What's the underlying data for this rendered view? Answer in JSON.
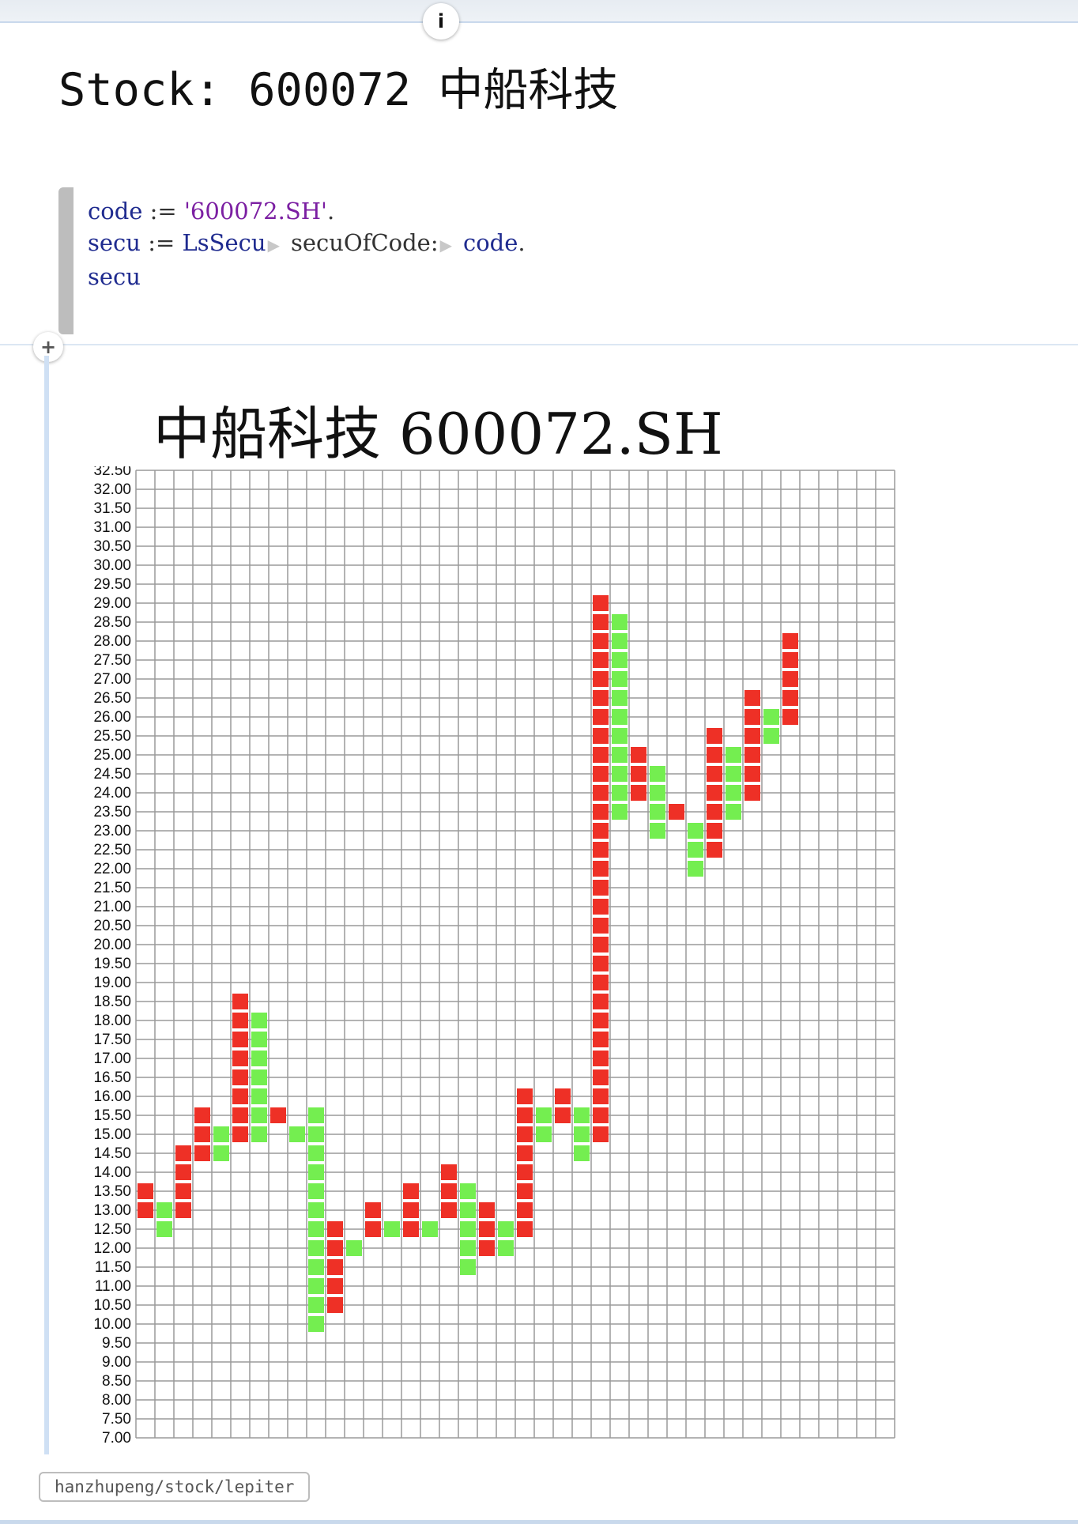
{
  "page_title": "Stock: 600072 中船科技",
  "code": {
    "line1": {
      "var": "code",
      "op": ":=",
      "str": "'600072.SH'",
      "end": "."
    },
    "line2": {
      "var": "secu",
      "op": ":=",
      "cls": "LsSecu",
      "msg": "secuOfCode:",
      "arg": "code",
      "end": "."
    },
    "line3": {
      "var": "secu"
    }
  },
  "repo_label": "hanzhupeng/stock/lepiter",
  "chart_data": {
    "type": "heatmap",
    "title": "中船科技 600072.SH",
    "y_min": 7.0,
    "y_max": 32.5,
    "y_step": 0.5,
    "y_ticks": [
      "32.50",
      "32.00",
      "31.50",
      "31.00",
      "30.50",
      "30.00",
      "29.50",
      "29.00",
      "28.50",
      "28.00",
      "27.50",
      "27.00",
      "26.50",
      "26.00",
      "25.50",
      "25.00",
      "24.50",
      "24.00",
      "23.50",
      "23.00",
      "22.50",
      "22.00",
      "21.50",
      "21.00",
      "20.50",
      "20.00",
      "19.50",
      "19.00",
      "18.50",
      "18.00",
      "17.50",
      "17.00",
      "16.50",
      "16.00",
      "15.50",
      "15.00",
      "14.50",
      "14.00",
      "13.50",
      "13.00",
      "12.50",
      "12.00",
      "11.50",
      "11.00",
      "10.50",
      "10.00",
      "9.50",
      "9.00",
      "8.50",
      "8.00",
      "7.50",
      "7.00"
    ],
    "num_columns": 40,
    "colors": {
      "up": "#ee3026",
      "down": "#74ee50",
      "grid": "#9a9a9a"
    },
    "columns": [
      {
        "dir": "up",
        "from": 13.0,
        "to": 13.5
      },
      {
        "dir": "down",
        "from": 13.0,
        "to": 12.5
      },
      {
        "dir": "up",
        "from": 13.0,
        "to": 14.5
      },
      {
        "dir": "up",
        "from": 14.5,
        "to": 15.5
      },
      {
        "dir": "down",
        "from": 15.0,
        "to": 14.5
      },
      {
        "dir": "up",
        "from": 15.0,
        "to": 18.5
      },
      {
        "dir": "down",
        "from": 18.0,
        "to": 15.0
      },
      {
        "dir": "up",
        "from": 15.5,
        "to": 15.5
      },
      {
        "dir": "down",
        "from": 15.0,
        "to": 15.0
      },
      {
        "dir": "down",
        "from": 15.5,
        "to": 10.0
      },
      {
        "dir": "up",
        "from": 10.5,
        "to": 12.5
      },
      {
        "dir": "down",
        "from": 12.0,
        "to": 12.0
      },
      {
        "dir": "up",
        "from": 12.5,
        "to": 13.0
      },
      {
        "dir": "down",
        "from": 12.5,
        "to": 12.5
      },
      {
        "dir": "up",
        "from": 12.5,
        "to": 13.5
      },
      {
        "dir": "down",
        "from": 12.5,
        "to": 12.5
      },
      {
        "dir": "up",
        "from": 13.0,
        "to": 14.0
      },
      {
        "dir": "down",
        "from": 13.5,
        "to": 11.5
      },
      {
        "dir": "up",
        "from": 12.0,
        "to": 13.0
      },
      {
        "dir": "down",
        "from": 12.5,
        "to": 12.0
      },
      {
        "dir": "up",
        "from": 12.5,
        "to": 16.0
      },
      {
        "dir": "down",
        "from": 15.5,
        "to": 15.0
      },
      {
        "dir": "up",
        "from": 15.5,
        "to": 16.0
      },
      {
        "dir": "down",
        "from": 15.5,
        "to": 14.5
      },
      {
        "dir": "up",
        "from": 15.0,
        "to": 29.0
      },
      {
        "dir": "down",
        "from": 28.5,
        "to": 23.5
      },
      {
        "dir": "up",
        "from": 24.0,
        "to": 25.0
      },
      {
        "dir": "down",
        "from": 24.5,
        "to": 23.0
      },
      {
        "dir": "up",
        "from": 23.5,
        "to": 23.5
      },
      {
        "dir": "down",
        "from": 23.0,
        "to": 22.0
      },
      {
        "dir": "up",
        "from": 22.5,
        "to": 25.5
      },
      {
        "dir": "down",
        "from": 25.0,
        "to": 23.5
      },
      {
        "dir": "up",
        "from": 24.0,
        "to": 26.5
      },
      {
        "dir": "down",
        "from": 26.0,
        "to": 25.5
      },
      {
        "dir": "up",
        "from": 26.0,
        "to": 28.0
      }
    ]
  }
}
